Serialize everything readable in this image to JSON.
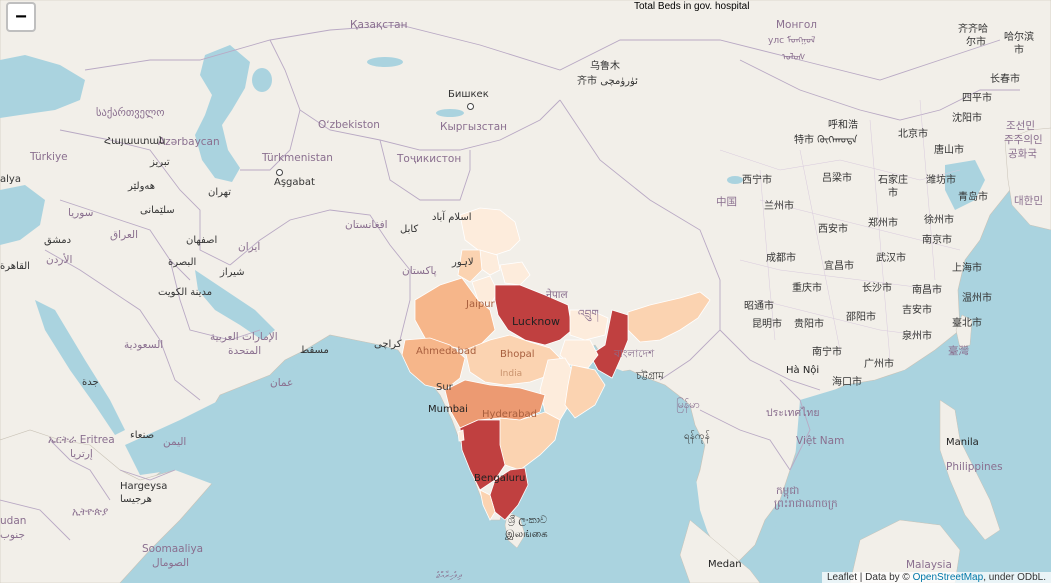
{
  "title": "Total Beds in gov. hospital",
  "zoom_out_label": "−",
  "attribution": {
    "prefix": "Leaflet | Data by © ",
    "link": "OpenStreetMap",
    "suffix": ", under ODbL."
  },
  "colors": {
    "water": "#aad3df",
    "land": "#f2efe9",
    "border": "#b9a9c4",
    "scale": [
      "#fdecdc",
      "#fbd3b1",
      "#f6b68a",
      "#ec9a72",
      "#c04040"
    ]
  },
  "labels": {
    "kazakhstan": "Қазақстан",
    "mongolia_1": "Монгол",
    "mongolia_2": "улс ᠮᠣᠩᠭᠣᠯ",
    "mongolia_3": "ᠤᠯᠤᠰ",
    "urumqi_1": "乌鲁木",
    "urumqi_2": "齐市 ئۈرۈمچى",
    "bishkek": "Бишкек",
    "kyrgyzstan": "Кыргызстан",
    "uzbekistan": "Oʻzbekiston",
    "turkmenistan": "Türkmenistan",
    "ashgabat": "Aşgabat",
    "tajikistan": "Тоҷикистон",
    "georgia": "საქართველო",
    "azerbaijan": "Azərbaycan",
    "armenia": "Հայաստան",
    "turkiye": "Türkiye",
    "alya": "alya",
    "tabriz": "تبریز",
    "mosul": "هەولێر",
    "syria": "سوريا",
    "tehran": "تهران",
    "sulaymaniyah": "سلێمانی",
    "damascus": "دمشق",
    "iraq": "العراق",
    "isfahan": "اصفهان",
    "iran": "ایران",
    "jordan": "الأردن",
    "basra": "البصرة",
    "shiraz": "شیراز",
    "kuwait": "مدينة الكويت",
    "cairo": "القاهرة",
    "afghanistan": "افغانستان",
    "kabul": "کابل",
    "islamabad": "اسلام آباد",
    "lahore": "لاہور",
    "pakistan": "پاکستان",
    "karachi": "کراچی",
    "saudi": "السعودية",
    "uae_1": "الإمارات العربية",
    "uae_2": "المتحدة",
    "muscat": "مسقط",
    "oman": "عمان",
    "jeddah": "جدة",
    "eritrea": "ኤርትራ Eritrea",
    "eritrea_2": "إرتريا",
    "sanaa": "صنعاء",
    "yemen": "اليمن",
    "hargeysa_1": "Hargeysa",
    "hargeysa_2": "هرجيسا",
    "ethiopia": "ኢትዮጵያ",
    "somalia_1": "Soomaaliya",
    "somalia_2": "الصومال",
    "udan": "udan",
    "udan_2": "جنوب",
    "jaipur": "Jaipur",
    "lucknow": "Lucknow",
    "nepal": "नेपाल",
    "bhutan": "འབྲུག",
    "ahmedabad": "Ahmedabad",
    "bhopal": "Bhopal",
    "india": "India",
    "surat": "Sur",
    "mumbai": "Mumbai",
    "hyderabad": "Hyderabad",
    "bangladesh": "বাংলাদেশ",
    "chittagong": "চট্টগ্রাম",
    "bengaluru": "Bengaluru",
    "srilanka_1": "ශ්‍රී ලංකාව",
    "srilanka_2": "இலங்கை",
    "maldives": "ދިވެހިރާއްޖެ",
    "myanmar": "မြန်မာ",
    "yangon": "ရန်ကုန်",
    "thailand": "ประเทศไทย",
    "cambodia_1": "កម្ពុជា",
    "cambodia_2": "ព្រះរាជាណាចក្រ",
    "vietnam": "Việt Nam",
    "hanoi": "Hà Nội",
    "manila": "Manila",
    "philippines": "Philippines",
    "malaysia": "Malaysia",
    "medan": "Medan",
    "china": "中国",
    "xining": "西宁市",
    "lanzhou": "兰州市",
    "xian": "西安市",
    "chengdu": "成都市",
    "chongqing": "重庆市",
    "yichang": "宜昌市",
    "wuhan": "武汉市",
    "changsha": "长沙市",
    "nanchang": "南昌市",
    "kunming": "昆明市",
    "guiyang": "贵阳市",
    "shaoyang": "邵阳市",
    "jian": "吉安市",
    "zhaotong": "昭通市",
    "nanning": "南宁市",
    "guangzhou": "广州市",
    "haikou": "海口市",
    "taipei": "臺北市",
    "taiwan": "臺灣",
    "quanzhou": "泉州市",
    "wenzhou": "温州市",
    "shanghai": "上海市",
    "nanjing": "南京市",
    "xuzhou": "徐州市",
    "zhengzhou": "郑州市",
    "luliang": "吕梁市",
    "shijiazhuang_1": "石家庄",
    "shijiazhuang_2": "市",
    "weifang": "潍坊市",
    "qingdao": "青岛市",
    "tangshan": "唐山市",
    "beijing": "北京市",
    "hohhot": "呼和浩",
    "hohhot_2": "特市 ᠬᠥᠬᠡᠬᠣᠲᠠ",
    "shenyang": "沈阳市",
    "siping": "四平市",
    "changchun": "长春市",
    "qiqihar_1": "齐齐哈",
    "qiqihar_2": "尔市",
    "harbin_1": "哈尔滨",
    "harbin_2": "市",
    "korea_1": "조선민",
    "korea_2": "주주의인",
    "korea_3": "공화국",
    "korea_4": "대한민"
  }
}
